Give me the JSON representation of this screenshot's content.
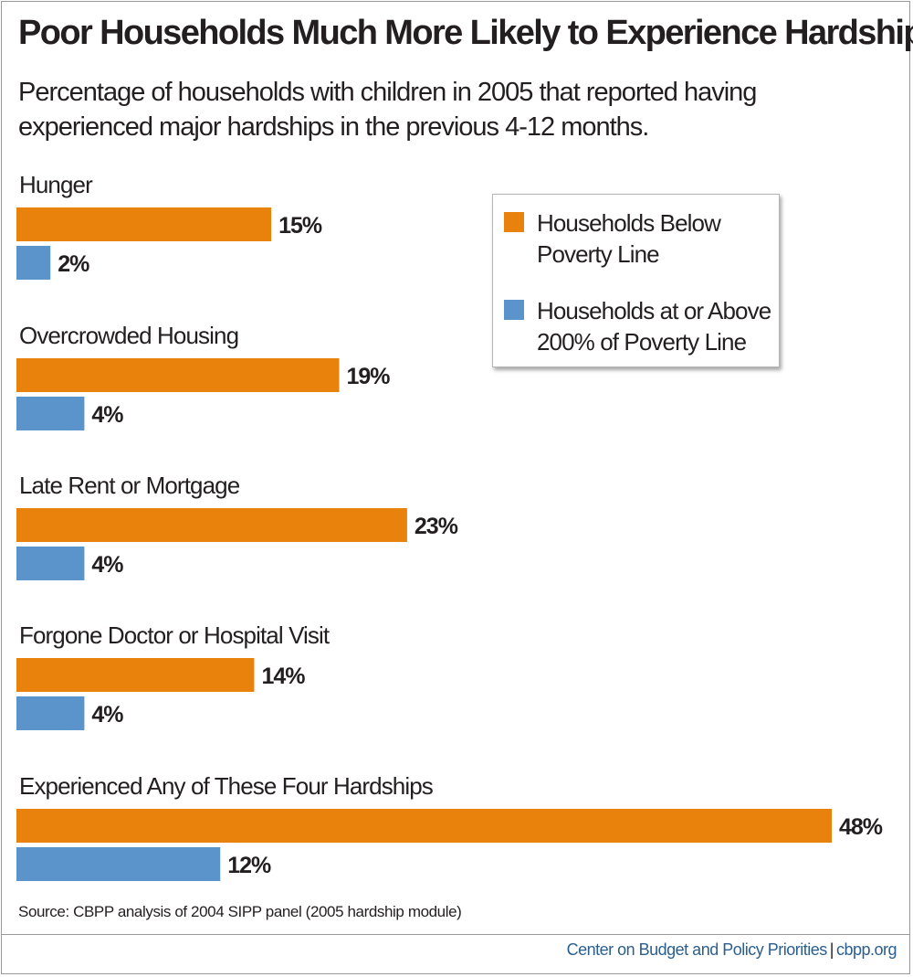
{
  "title": "Poor Households Much More Likely to Experience Hardship",
  "subtitle": "Percentage of households with children in 2005 that reported having experienced major hardships in the previous 4-12 months.",
  "colors": {
    "below_poverty": "#e8820c",
    "above_200": "#5b93cb"
  },
  "legend": {
    "items": [
      {
        "label": "Households Below Poverty Line",
        "color": "#e8820c"
      },
      {
        "label": "Households at or Above 200% of Poverty Line",
        "color": "#5b93cb"
      }
    ]
  },
  "chart_data": {
    "type": "bar",
    "orientation": "horizontal",
    "categories": [
      "Hunger",
      "Overcrowded Housing",
      "Late Rent or Mortgage",
      "Forgone Doctor or Hospital Visit",
      "Experienced Any of These Four Hardships"
    ],
    "series": [
      {
        "name": "Households Below Poverty Line",
        "values": [
          15,
          19,
          23,
          14,
          48
        ],
        "labels": [
          "15%",
          "19%",
          "23%",
          "14%",
          "48%"
        ]
      },
      {
        "name": "Households at or Above 200% of Poverty Line",
        "values": [
          2,
          4,
          4,
          4,
          12
        ],
        "labels": [
          "2%",
          "4%",
          "4%",
          "4%",
          "12%"
        ]
      }
    ],
    "unit": "%",
    "xlim": [
      0,
      48
    ],
    "grid": false,
    "legend_position": "top-right"
  },
  "source": "Source: CBPP analysis of 2004 SIPP panel (2005 hardship module)",
  "footer": {
    "org": "Center on Budget and Policy Priorities",
    "separator": "|",
    "site": "cbpp.org"
  }
}
